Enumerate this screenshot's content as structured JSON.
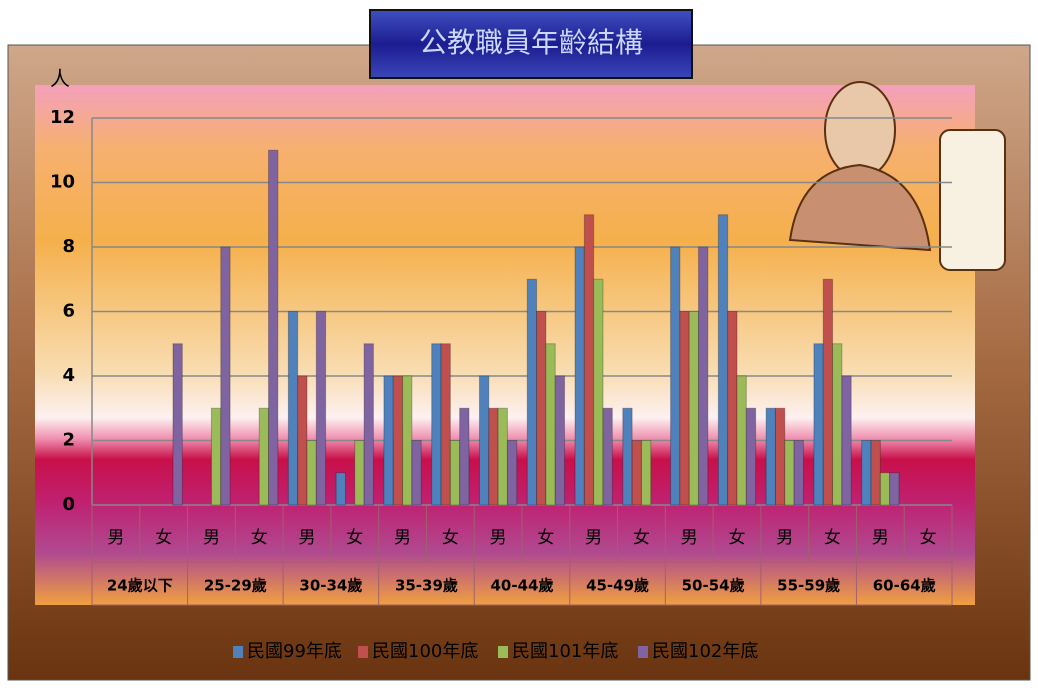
{
  "chart_data": {
    "type": "bar",
    "title": "公教職員年齡結構",
    "y_label": "人",
    "categories": [
      "男",
      "女",
      "男",
      "女",
      "男",
      "女",
      "男",
      "女",
      "男",
      "女",
      "男",
      "女",
      "男",
      "女",
      "男",
      "女",
      "男",
      "女"
    ],
    "groups": [
      "24歲以下",
      "25-29歲",
      "30-34歲",
      "35-39歲",
      "40-44歲",
      "45-49歲",
      "50-54歲",
      "55-59歲",
      "60-64歲"
    ],
    "series": [
      {
        "name": "民國99年底",
        "color": "#4f81bd",
        "values": [
          0,
          0,
          0,
          0,
          6,
          1,
          4,
          5,
          4,
          7,
          8,
          3,
          8,
          9,
          3,
          5,
          2,
          0
        ]
      },
      {
        "name": "民國100年底",
        "color": "#c0504d",
        "values": [
          0,
          0,
          0,
          0,
          4,
          0,
          4,
          5,
          3,
          6,
          9,
          2,
          6,
          6,
          3,
          7,
          2,
          0
        ]
      },
      {
        "name": "民國101年底",
        "color": "#9bbb59",
        "values": [
          0,
          0,
          3,
          3,
          2,
          2,
          4,
          2,
          3,
          5,
          7,
          2,
          6,
          4,
          2,
          5,
          1,
          0
        ]
      },
      {
        "name": "民國102年底",
        "color": "#8064a2",
        "values": [
          0,
          5,
          8,
          11,
          6,
          5,
          2,
          3,
          2,
          4,
          3,
          0,
          8,
          3,
          2,
          4,
          1,
          0
        ]
      }
    ],
    "ylim": [
      0,
      12
    ],
    "yticks": [
      0,
      2,
      4,
      6,
      8,
      10,
      12
    ],
    "grid": true,
    "legend": "bottom"
  }
}
